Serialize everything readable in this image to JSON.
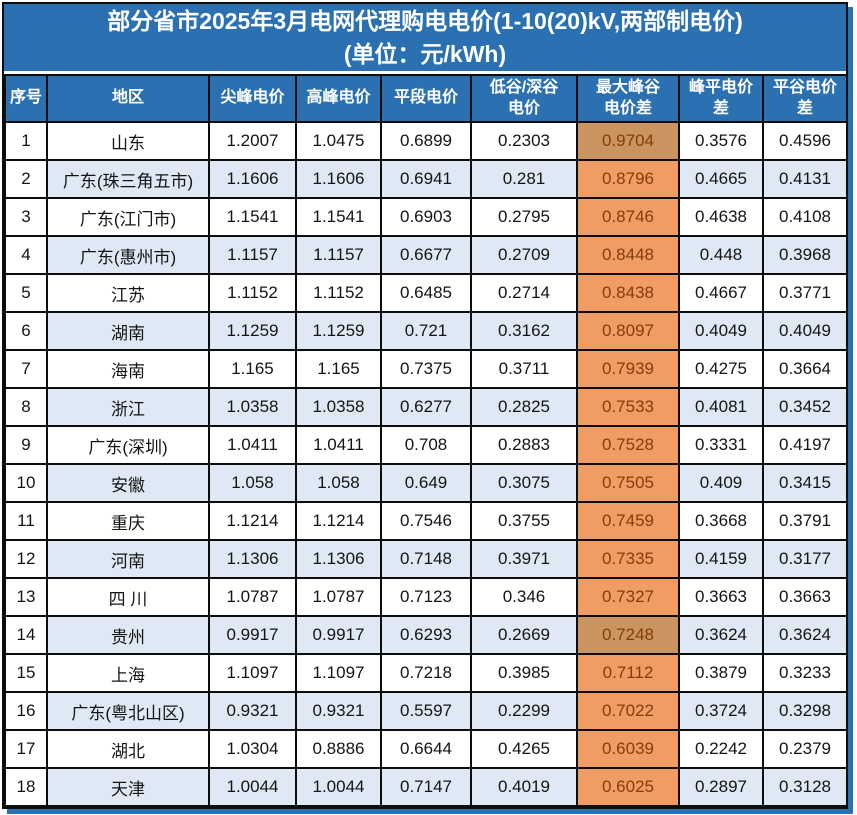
{
  "chart_data": {
    "type": "table",
    "title": "部分省市2025年3月电网代理购电电价(1-10(20)kV,两部制电价)",
    "subtitle": "(单位：元/kWh)",
    "columns": [
      "序号",
      "地区",
      "尖峰电价",
      "高峰电价",
      "平段电价",
      "低谷/深谷电价",
      "最大峰谷电价差",
      "峰平电价差",
      "平谷电价差"
    ],
    "rows": [
      [
        "1",
        "山东",
        "1.2007",
        "1.0475",
        "0.6899",
        "0.2303",
        "0.9704",
        "0.3576",
        "0.4596"
      ],
      [
        "2",
        "广东(珠三角五市)",
        "1.1606",
        "1.1606",
        "0.6941",
        "0.281",
        "0.8796",
        "0.4665",
        "0.4131"
      ],
      [
        "3",
        "广东(江门市)",
        "1.1541",
        "1.1541",
        "0.6903",
        "0.2795",
        "0.8746",
        "0.4638",
        "0.4108"
      ],
      [
        "4",
        "广东(惠州市)",
        "1.1157",
        "1.1157",
        "0.6677",
        "0.2709",
        "0.8448",
        "0.448",
        "0.3968"
      ],
      [
        "5",
        "江苏",
        "1.1152",
        "1.1152",
        "0.6485",
        "0.2714",
        "0.8438",
        "0.4667",
        "0.3771"
      ],
      [
        "6",
        "湖南",
        "1.1259",
        "1.1259",
        "0.721",
        "0.3162",
        "0.8097",
        "0.4049",
        "0.4049"
      ],
      [
        "7",
        "海南",
        "1.165",
        "1.165",
        "0.7375",
        "0.3711",
        "0.7939",
        "0.4275",
        "0.3664"
      ],
      [
        "8",
        "浙江",
        "1.0358",
        "1.0358",
        "0.6277",
        "0.2825",
        "0.7533",
        "0.4081",
        "0.3452"
      ],
      [
        "9",
        "广东(深圳)",
        "1.0411",
        "1.0411",
        "0.708",
        "0.2883",
        "0.7528",
        "0.3331",
        "0.4197"
      ],
      [
        "10",
        "安徽",
        "1.058",
        "1.058",
        "0.649",
        "0.3075",
        "0.7505",
        "0.409",
        "0.3415"
      ],
      [
        "11",
        "重庆",
        "1.1214",
        "1.1214",
        "0.7546",
        "0.3755",
        "0.7459",
        "0.3668",
        "0.3791"
      ],
      [
        "12",
        "河南",
        "1.1306",
        "1.1306",
        "0.7148",
        "0.3971",
        "0.7335",
        "0.4159",
        "0.3177"
      ],
      [
        "13",
        "四 川",
        "1.0787",
        "1.0787",
        "0.7123",
        "0.346",
        "0.7327",
        "0.3663",
        "0.3663"
      ],
      [
        "14",
        "贵州",
        "0.9917",
        "0.9917",
        "0.6293",
        "0.2669",
        "0.7248",
        "0.3624",
        "0.3624"
      ],
      [
        "15",
        "上海",
        "1.1097",
        "1.1097",
        "0.7218",
        "0.3985",
        "0.7112",
        "0.3879",
        "0.3233"
      ],
      [
        "16",
        "广东(粤北山区)",
        "0.9321",
        "0.9321",
        "0.5597",
        "0.2299",
        "0.7022",
        "0.3724",
        "0.3298"
      ],
      [
        "17",
        "湖北",
        "1.0304",
        "0.8886",
        "0.6644",
        "0.4265",
        "0.6039",
        "0.2242",
        "0.2379"
      ],
      [
        "18",
        "天津",
        "1.0044",
        "1.0044",
        "0.7147",
        "0.4019",
        "0.6025",
        "0.2897",
        "0.3128"
      ]
    ]
  },
  "display": {
    "header_lines": [
      "序号",
      "地区",
      "尖峰电价",
      "高峰电价",
      "平段电价",
      "低谷/深谷\n电价",
      "最大峰谷\n电价差",
      "峰平电价\n差",
      "平谷电价\n差"
    ],
    "highlighted_column": "最大峰谷电价差",
    "dark_shaded_row_numbers": [
      "1",
      "14"
    ]
  },
  "colors": {
    "header_blue": "#2B70B0",
    "alt_row_blue": "#DEE9F5",
    "max_diff_orange": "#F09D64",
    "max_diff_orange_dark": "#C9945F",
    "max_diff_text": "#843C0C",
    "grid_line": "#0D0D0D"
  }
}
